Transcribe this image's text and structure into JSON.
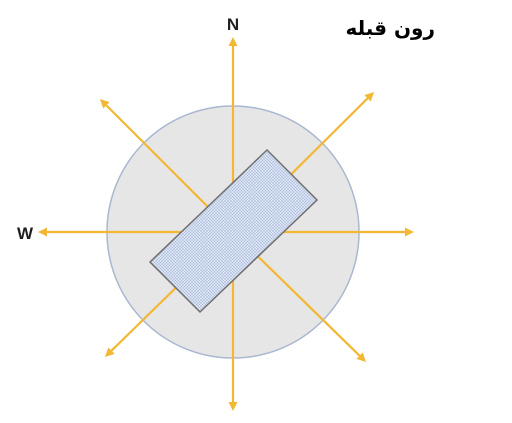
{
  "title": "رون قبله",
  "directions": {
    "north": "N",
    "west": "W"
  },
  "colors": {
    "arrow": "#F2B733",
    "circle_fill": "#E6E6E6",
    "circle_stroke": "#A9B7D0",
    "building_fill": "#DCE5F5",
    "building_stroke": "#6F6F6F",
    "text": "#1F1F1F"
  },
  "arrow_directions": [
    "north",
    "north-east",
    "east",
    "south-east",
    "south",
    "south-west",
    "west",
    "north-west"
  ]
}
